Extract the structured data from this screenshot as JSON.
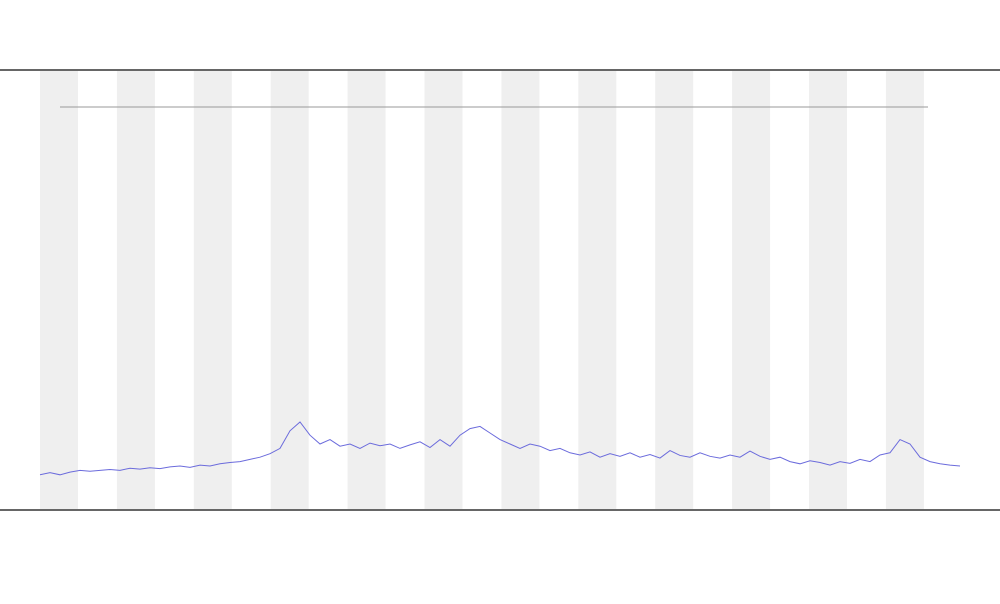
{
  "chart_data": {
    "type": "line",
    "x": [
      0,
      1,
      2,
      3,
      4,
      5,
      6,
      7,
      8,
      9,
      10,
      11,
      12,
      13,
      14,
      15,
      16,
      17,
      18,
      19,
      20,
      21,
      22,
      23,
      24,
      25,
      26,
      27,
      28,
      29,
      30,
      31,
      32,
      33,
      34,
      35,
      36,
      37,
      38,
      39,
      40,
      41,
      42,
      43,
      44,
      45,
      46,
      47,
      48,
      49,
      50,
      51,
      52,
      53,
      54,
      55,
      56,
      57,
      58,
      59,
      60,
      61,
      62,
      63,
      64,
      65,
      66,
      67,
      68,
      69,
      70,
      71,
      72,
      73,
      74,
      75,
      76,
      77,
      78,
      79,
      80,
      81,
      82,
      83,
      84,
      85,
      86,
      87,
      88,
      89,
      90,
      91,
      92
    ],
    "series": [
      {
        "color": "#6b6bdc",
        "values": [
          8,
          8.5,
          8,
          8.6,
          9,
          8.8,
          9,
          9.2,
          9,
          9.5,
          9.3,
          9.6,
          9.4,
          9.8,
          10,
          9.7,
          10.2,
          10,
          10.5,
          10.8,
          11,
          11.5,
          12,
          12.8,
          14,
          18,
          20,
          17,
          15,
          16,
          14.5,
          15,
          14,
          15.2,
          14.6,
          15,
          14,
          14.8,
          15.5,
          14.2,
          16,
          14.5,
          17,
          18.5,
          19,
          17.5,
          16,
          15,
          14,
          15,
          14.5,
          13.5,
          14,
          13,
          12.5,
          13.2,
          12,
          12.8,
          12.2,
          13,
          12,
          12.6,
          11.8,
          13.5,
          12.4,
          12,
          13,
          12.2,
          11.8,
          12.5,
          12,
          13.4,
          12.2,
          11.5,
          12,
          11,
          10.5,
          11.2,
          10.8,
          10.2,
          11,
          10.6,
          11.5,
          11,
          12.5,
          13,
          16,
          15,
          12,
          11,
          10.5,
          10.2,
          10
        ]
      }
    ],
    "xlim": [
      0,
      92
    ],
    "ylim": [
      0,
      100
    ]
  }
}
